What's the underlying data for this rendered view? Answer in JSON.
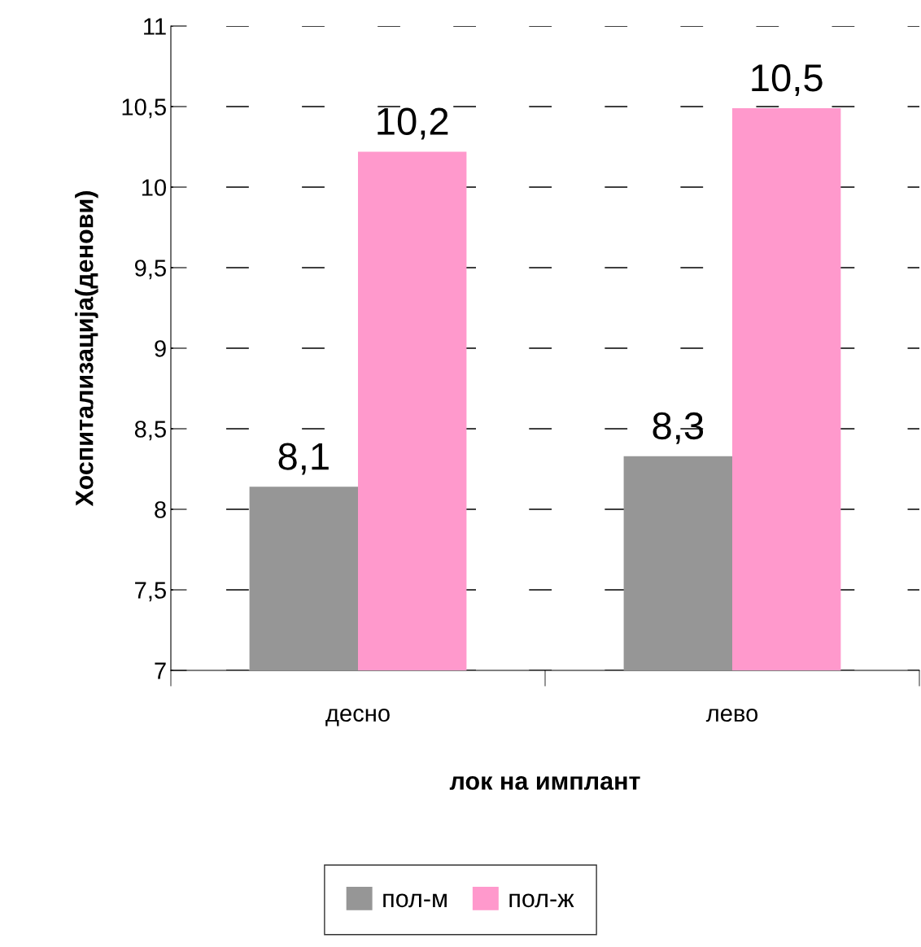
{
  "chart_data": {
    "type": "bar",
    "xlabel": "лок на имплант",
    "ylabel": "Хоспитализација(денови)",
    "categories": [
      "десно",
      "лево"
    ],
    "series": [
      {
        "name": "пол-м",
        "color": "#969696",
        "values": [
          8.14,
          8.33
        ],
        "value_labels": [
          "8,1",
          "8,3"
        ]
      },
      {
        "name": "пол-ж",
        "color": "#ff99cc",
        "values": [
          10.22,
          10.49
        ],
        "value_labels": [
          "10,2",
          "10,5"
        ]
      }
    ],
    "ylim": [
      7,
      11
    ],
    "yticks": [
      7,
      {
        "value": 7.5,
        "label": "7,5"
      },
      8,
      {
        "value": 8.5,
        "label": "8,5"
      },
      9,
      {
        "value": 9.5,
        "label": "9,5"
      },
      10,
      {
        "value": 10.5,
        "label": "10,5"
      },
      11
    ],
    "grid": "y",
    "legend": "bottom"
  }
}
